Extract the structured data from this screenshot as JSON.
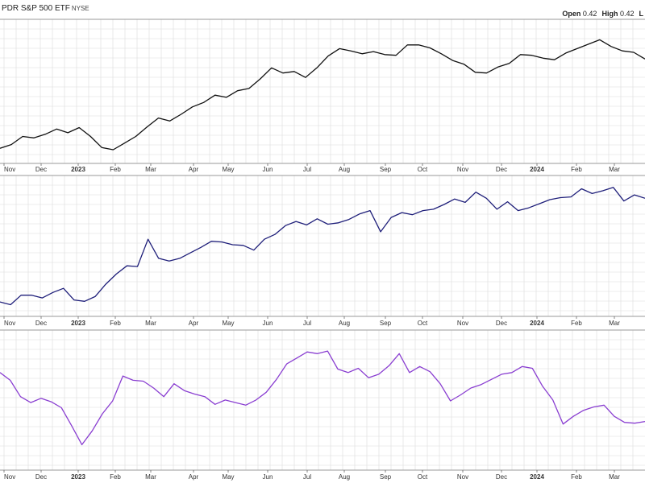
{
  "header": {
    "title": "PDR S&P 500 ETF",
    "exchange": "NYSE",
    "open_label": "Open",
    "open_value": "0.42",
    "high_label": "High",
    "high_value": "0.42",
    "trailing": "L"
  },
  "colors": {
    "panel1_line": "#111111",
    "panel2_line": "#1f1f7a",
    "panel3_line": "#8a3fd1",
    "grid": "#dcdcdc",
    "border": "#999999"
  },
  "chart_data": [
    {
      "type": "line",
      "title": "",
      "x_ticks": [
        {
          "label": "Nov",
          "bold": false
        },
        {
          "label": "Dec",
          "bold": false
        },
        {
          "label": "2023",
          "bold": true
        },
        {
          "label": "Feb",
          "bold": false
        },
        {
          "label": "Mar",
          "bold": false
        },
        {
          "label": "Apr",
          "bold": false
        },
        {
          "label": "May",
          "bold": false
        },
        {
          "label": "Jun",
          "bold": false
        },
        {
          "label": "Jul",
          "bold": false
        },
        {
          "label": "Aug",
          "bold": false
        },
        {
          "label": "Sep",
          "bold": false
        },
        {
          "label": "Oct",
          "bold": false
        },
        {
          "label": "Nov",
          "bold": false
        },
        {
          "label": "Dec",
          "bold": false
        },
        {
          "label": "2024",
          "bold": true
        },
        {
          "label": "Feb",
          "bold": false
        },
        {
          "label": "Mar",
          "bold": false
        }
      ],
      "series": [
        {
          "values": [
            14,
            19,
            30,
            28,
            33,
            40,
            35,
            42,
            30,
            15,
            12,
            21,
            30,
            43,
            55,
            51,
            60,
            70,
            76,
            86,
            83,
            92,
            95,
            108,
            123,
            116,
            118,
            110,
            123,
            139,
            149,
            146,
            142,
            145,
            141,
            140,
            154,
            154,
            150,
            142,
            133,
            128,
            117,
            116,
            124,
            129,
            141,
            140,
            136,
            134,
            143,
            149,
            155,
            161,
            152,
            146,
            144,
            135
          ]
        }
      ]
    },
    {
      "type": "line",
      "title": "",
      "x_ticks": [
        {
          "label": "Nov",
          "bold": false
        },
        {
          "label": "Dec",
          "bold": false
        },
        {
          "label": "2023",
          "bold": true
        },
        {
          "label": "Feb",
          "bold": false
        },
        {
          "label": "Mar",
          "bold": false
        },
        {
          "label": "Apr",
          "bold": false
        },
        {
          "label": "May",
          "bold": false
        },
        {
          "label": "Jun",
          "bold": false
        },
        {
          "label": "Jul",
          "bold": false
        },
        {
          "label": "Aug",
          "bold": false
        },
        {
          "label": "Sep",
          "bold": false
        },
        {
          "label": "Oct",
          "bold": false
        },
        {
          "label": "Nov",
          "bold": false
        },
        {
          "label": "Dec",
          "bold": false
        },
        {
          "label": "2024",
          "bold": true
        },
        {
          "label": "Feb",
          "bold": false
        },
        {
          "label": "Mar",
          "bold": false
        }
      ],
      "series": [
        {
          "values": [
            14,
            10,
            24,
            24,
            20,
            28,
            34,
            17,
            15,
            22,
            40,
            55,
            67,
            66,
            106,
            78,
            74,
            78,
            86,
            94,
            103,
            102,
            98,
            97,
            90,
            106,
            113,
            126,
            132,
            127,
            136,
            128,
            130,
            135,
            143,
            148,
            117,
            138,
            145,
            142,
            148,
            150,
            157,
            165,
            160,
            175,
            166,
            150,
            161,
            148,
            152,
            158,
            164,
            167,
            168,
            180,
            173,
            177,
            182,
            162,
            171,
            166
          ]
        }
      ]
    },
    {
      "type": "line",
      "title": "",
      "x_ticks": [
        {
          "label": "Nov",
          "bold": false
        },
        {
          "label": "Dec",
          "bold": false
        },
        {
          "label": "2023",
          "bold": true
        },
        {
          "label": "Feb",
          "bold": false
        },
        {
          "label": "Mar",
          "bold": false
        },
        {
          "label": "Apr",
          "bold": false
        },
        {
          "label": "May",
          "bold": false
        },
        {
          "label": "Jun",
          "bold": false
        },
        {
          "label": "Jul",
          "bold": false
        },
        {
          "label": "Aug",
          "bold": false
        },
        {
          "label": "Sep",
          "bold": false
        },
        {
          "label": "Oct",
          "bold": false
        },
        {
          "label": "Nov",
          "bold": false
        },
        {
          "label": "Dec",
          "bold": false
        },
        {
          "label": "2024",
          "bold": true
        },
        {
          "label": "Feb",
          "bold": false
        },
        {
          "label": "Mar",
          "bold": false
        }
      ],
      "series": [
        {
          "values": [
            108,
            99,
            80,
            73,
            78,
            74,
            67,
            46,
            24,
            40,
            60,
            75,
            104,
            99,
            98,
            90,
            80,
            95,
            87,
            83,
            80,
            71,
            76,
            73,
            70,
            76,
            85,
            100,
            118,
            125,
            132,
            130,
            133,
            112,
            108,
            113,
            102,
            106,
            116,
            130,
            108,
            115,
            109,
            95,
            75,
            82,
            90,
            94,
            100,
            106,
            108,
            115,
            113,
            92,
            76,
            48,
            57,
            64,
            68,
            70,
            57,
            50,
            49,
            51
          ]
        }
      ]
    }
  ]
}
